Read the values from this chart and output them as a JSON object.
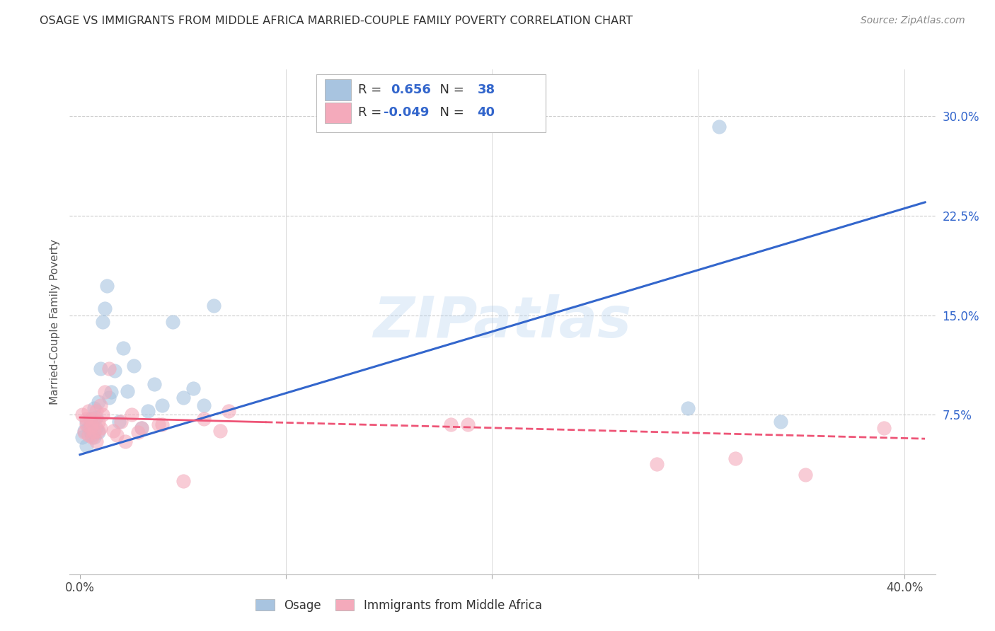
{
  "title": "OSAGE VS IMMIGRANTS FROM MIDDLE AFRICA MARRIED-COUPLE FAMILY POVERTY CORRELATION CHART",
  "source": "Source: ZipAtlas.com",
  "ylabel": "Married-Couple Family Poverty",
  "watermark": "ZIPatlas",
  "legend_r_blue": "0.656",
  "legend_n_blue": "38",
  "legend_r_pink": "-0.049",
  "legend_n_pink": "40",
  "xlim": [
    -0.005,
    0.415
  ],
  "ylim": [
    -0.045,
    0.335
  ],
  "blue_color": "#A8C4E0",
  "pink_color": "#F4AABB",
  "blue_line_color": "#3366CC",
  "pink_line_color": "#EE5577",
  "grid_color": "#CCCCCC",
  "background_color": "#FFFFFF",
  "blue_line_x0": 0.0,
  "blue_line_y0": 0.045,
  "blue_line_x1": 0.41,
  "blue_line_y1": 0.235,
  "pink_line_x0": 0.0,
  "pink_line_y0": 0.073,
  "pink_line_x1": 0.41,
  "pink_line_y1": 0.057,
  "osage_points_x": [
    0.001,
    0.002,
    0.003,
    0.003,
    0.004,
    0.005,
    0.005,
    0.006,
    0.006,
    0.007,
    0.007,
    0.008,
    0.008,
    0.009,
    0.009,
    0.01,
    0.011,
    0.012,
    0.013,
    0.014,
    0.015,
    0.017,
    0.019,
    0.021,
    0.023,
    0.026,
    0.03,
    0.033,
    0.036,
    0.04,
    0.045,
    0.05,
    0.055,
    0.06,
    0.065,
    0.295,
    0.31,
    0.34
  ],
  "osage_points_y": [
    0.058,
    0.063,
    0.052,
    0.07,
    0.065,
    0.062,
    0.072,
    0.06,
    0.068,
    0.058,
    0.08,
    0.065,
    0.073,
    0.062,
    0.085,
    0.11,
    0.145,
    0.155,
    0.172,
    0.088,
    0.092,
    0.108,
    0.07,
    0.125,
    0.093,
    0.112,
    0.065,
    0.078,
    0.098,
    0.082,
    0.145,
    0.088,
    0.095,
    0.082,
    0.157,
    0.08,
    0.292,
    0.07
  ],
  "africa_points_x": [
    0.001,
    0.002,
    0.003,
    0.003,
    0.004,
    0.004,
    0.005,
    0.005,
    0.006,
    0.006,
    0.007,
    0.007,
    0.008,
    0.008,
    0.009,
    0.009,
    0.01,
    0.01,
    0.011,
    0.012,
    0.014,
    0.016,
    0.018,
    0.02,
    0.022,
    0.025,
    0.028,
    0.03,
    0.038,
    0.04,
    0.05,
    0.06,
    0.068,
    0.072,
    0.18,
    0.188,
    0.28,
    0.318,
    0.352,
    0.39
  ],
  "africa_points_y": [
    0.075,
    0.062,
    0.068,
    0.072,
    0.06,
    0.078,
    0.065,
    0.07,
    0.058,
    0.068,
    0.062,
    0.072,
    0.055,
    0.078,
    0.063,
    0.07,
    0.065,
    0.082,
    0.075,
    0.092,
    0.11,
    0.063,
    0.06,
    0.07,
    0.055,
    0.075,
    0.062,
    0.065,
    0.068,
    0.068,
    0.025,
    0.072,
    0.063,
    0.078,
    0.068,
    0.068,
    0.038,
    0.042,
    0.03,
    0.065
  ]
}
